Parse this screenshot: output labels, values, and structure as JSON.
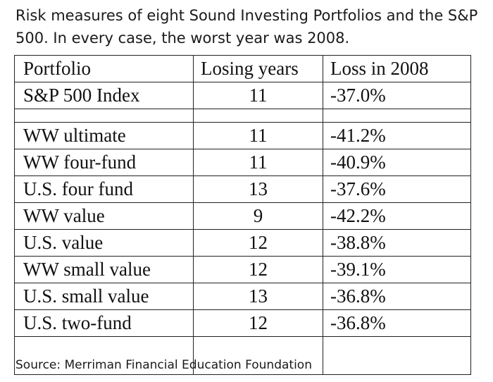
{
  "caption": "Risk measures of eight Sound Investing Portfolios and the S&P 500. In every case, the worst year was 2008.",
  "table": {
    "headers": {
      "portfolio": "Portfolio",
      "losing_years": "Losing years",
      "loss_2008": "Loss in 2008"
    },
    "benchmark": {
      "portfolio": "S&P 500 Index",
      "losing_years": "11",
      "loss_2008": "-37.0%"
    },
    "rows": [
      {
        "portfolio": "WW ultimate",
        "losing_years": "11",
        "loss_2008": "-41.2%"
      },
      {
        "portfolio": "WW four-fund",
        "losing_years": "11",
        "loss_2008": "-40.9%"
      },
      {
        "portfolio": "U.S. four fund",
        "losing_years": "13",
        "loss_2008": "-37.6%"
      },
      {
        "portfolio": "WW value",
        "losing_years": "9",
        "loss_2008": "-42.2%"
      },
      {
        "portfolio": "U.S. value",
        "losing_years": "12",
        "loss_2008": "-38.8%"
      },
      {
        "portfolio": "WW small value",
        "losing_years": "12",
        "loss_2008": "-39.1%"
      },
      {
        "portfolio": "U.S. small value",
        "losing_years": "13",
        "loss_2008": "-36.8%"
      },
      {
        "portfolio": "U.S. two-fund",
        "losing_years": "12",
        "loss_2008": "-36.8%"
      }
    ]
  },
  "source": "Source: Merriman Financial Education Foundation"
}
